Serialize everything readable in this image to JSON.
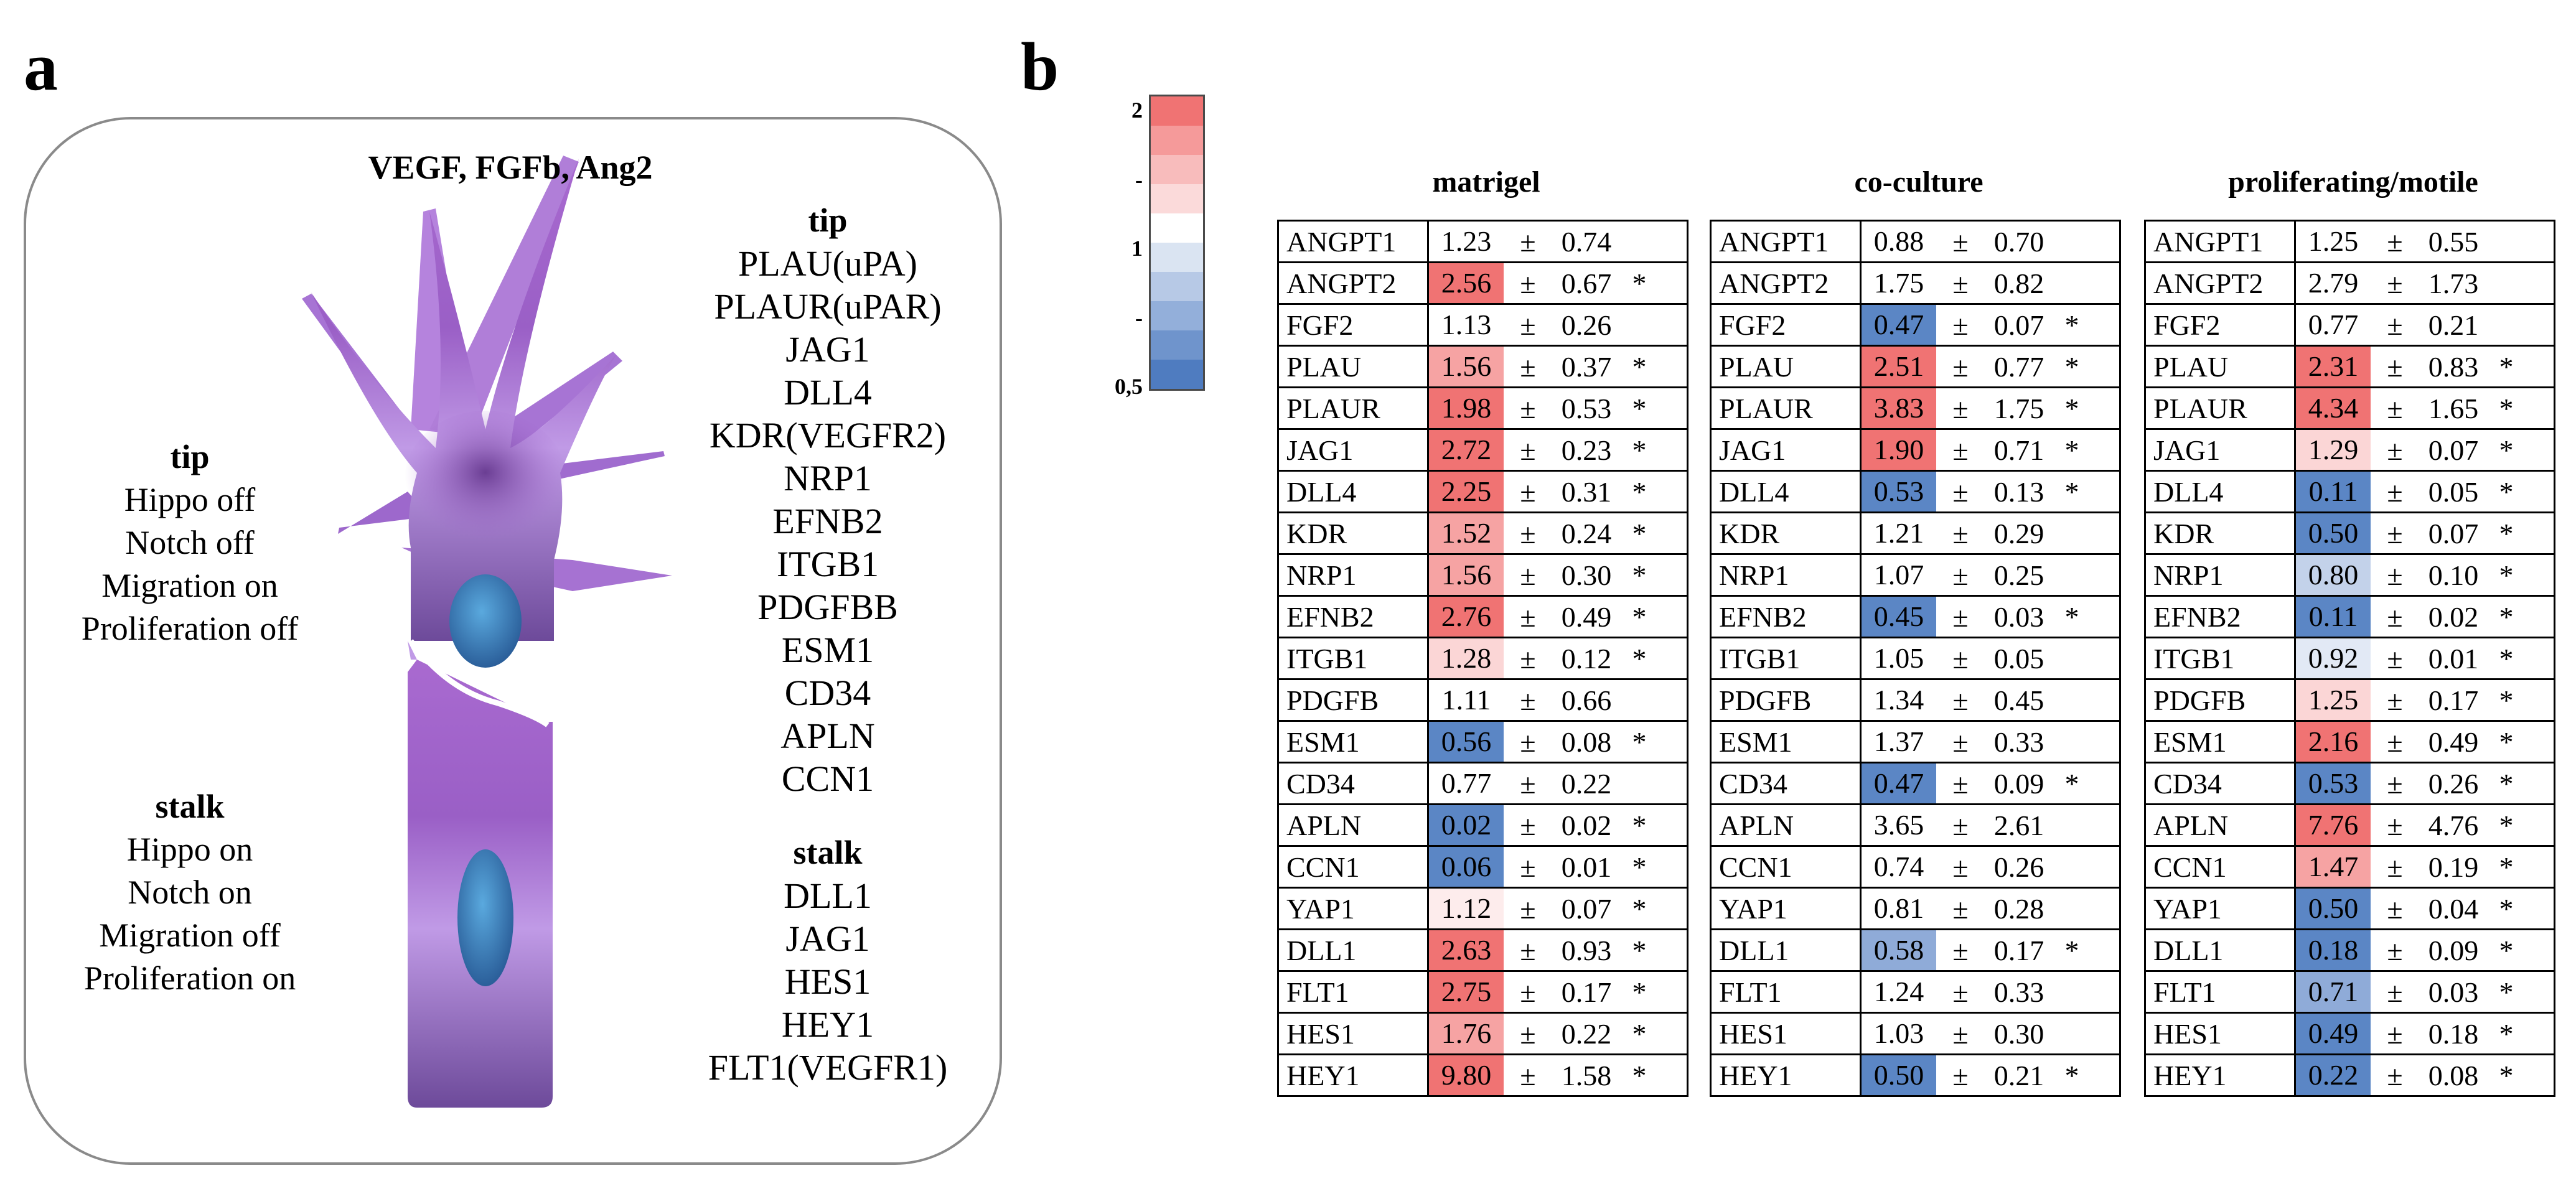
{
  "panels": {
    "a": "a",
    "b": "b"
  },
  "diagram": {
    "growth_factors": "VEGF, FGFb, Ang2",
    "tip_state": {
      "heading": "tip",
      "lines": [
        "Hippo off",
        "Notch off",
        "Migration on",
        "Proliferation off"
      ]
    },
    "stalk_state": {
      "heading": "stalk",
      "lines": [
        "Hippo on",
        "Notch on",
        "Migration off",
        "Proliferation on"
      ]
    },
    "tip_genes": {
      "heading": "tip",
      "items": [
        "PLAU(uPA)",
        "PLAUR(uPAR)",
        "JAG1",
        "DLL4",
        "KDR(VEGFR2)",
        "NRP1",
        "EFNB2",
        "ITGB1",
        "PDGFBB",
        "ESM1",
        "CD34",
        "APLN",
        "CCN1"
      ]
    },
    "stalk_genes": {
      "heading": "stalk",
      "items": [
        "DLL1",
        "JAG1",
        "HES1",
        "HEY1",
        "FLT1(VEGFR1)"
      ]
    }
  },
  "legend": {
    "labels": [
      "2",
      "-",
      "1",
      "-",
      "0,5"
    ],
    "colors": [
      "#f07373",
      "#f59a9a",
      "#f8bcbc",
      "#fbdada",
      "#ffffff",
      "#dae4f2",
      "#b7c9e6",
      "#93afda",
      "#6f94cc",
      "#4f7cc0"
    ]
  },
  "colors": {
    "strong_red": "#f07373",
    "mid_red": "#f6a3a3",
    "light_red": "#fbd6d6",
    "faint_red": "#fdecec",
    "strong_blue": "#5b86c5",
    "mid_blue": "#8fabd8",
    "light_blue": "#c3d2ea",
    "faint_blue": "#e2e9f5"
  },
  "plus_minus": "±",
  "tables": [
    {
      "title": "matrigel",
      "rows": [
        {
          "gene": "ANGPT1",
          "mean": "1.23",
          "sd": "0.74",
          "sig": "",
          "tone": "none"
        },
        {
          "gene": "ANGPT2",
          "mean": "2.56",
          "sd": "0.67",
          "sig": "*",
          "tone": "red3"
        },
        {
          "gene": "FGF2",
          "mean": "1.13",
          "sd": "0.26",
          "sig": "",
          "tone": "none"
        },
        {
          "gene": "PLAU",
          "mean": "1.56",
          "sd": "0.37",
          "sig": "*",
          "tone": "red2"
        },
        {
          "gene": "PLAUR",
          "mean": "1.98",
          "sd": "0.53",
          "sig": "*",
          "tone": "red3"
        },
        {
          "gene": "JAG1",
          "mean": "2.72",
          "sd": "0.23",
          "sig": "*",
          "tone": "red3"
        },
        {
          "gene": "DLL4",
          "mean": "2.25",
          "sd": "0.31",
          "sig": "*",
          "tone": "red3"
        },
        {
          "gene": "KDR",
          "mean": "1.52",
          "sd": "0.24",
          "sig": "*",
          "tone": "red2"
        },
        {
          "gene": "NRP1",
          "mean": "1.56",
          "sd": "0.30",
          "sig": "*",
          "tone": "red2"
        },
        {
          "gene": "EFNB2",
          "mean": "2.76",
          "sd": "0.49",
          "sig": "*",
          "tone": "red3"
        },
        {
          "gene": "ITGB1",
          "mean": "1.28",
          "sd": "0.12",
          "sig": "*",
          "tone": "red1"
        },
        {
          "gene": "PDGFB",
          "mean": "1.11",
          "sd": "0.66",
          "sig": "",
          "tone": "none"
        },
        {
          "gene": "ESM1",
          "mean": "0.56",
          "sd": "0.08",
          "sig": "*",
          "tone": "blue3"
        },
        {
          "gene": "CD34",
          "mean": "0.77",
          "sd": "0.22",
          "sig": "",
          "tone": "none"
        },
        {
          "gene": "APLN",
          "mean": "0.02",
          "sd": "0.02",
          "sig": "*",
          "tone": "blue3"
        },
        {
          "gene": "CCN1",
          "mean": "0.06",
          "sd": "0.01",
          "sig": "*",
          "tone": "blue3"
        },
        {
          "gene": "YAP1",
          "mean": "1.12",
          "sd": "0.07",
          "sig": "*",
          "tone": "red0"
        },
        {
          "gene": "DLL1",
          "mean": "2.63",
          "sd": "0.93",
          "sig": "*",
          "tone": "red3"
        },
        {
          "gene": "FLT1",
          "mean": "2.75",
          "sd": "0.17",
          "sig": "*",
          "tone": "red3"
        },
        {
          "gene": "HES1",
          "mean": "1.76",
          "sd": "0.22",
          "sig": "*",
          "tone": "red2"
        },
        {
          "gene": "HEY1",
          "mean": "9.80",
          "sd": "1.58",
          "sig": "*",
          "tone": "red3"
        }
      ]
    },
    {
      "title": "co-culture",
      "rows": [
        {
          "gene": "ANGPT1",
          "mean": "0.88",
          "sd": "0.70",
          "sig": "",
          "tone": "none"
        },
        {
          "gene": "ANGPT2",
          "mean": "1.75",
          "sd": "0.82",
          "sig": "",
          "tone": "none"
        },
        {
          "gene": "FGF2",
          "mean": "0.47",
          "sd": "0.07",
          "sig": "*",
          "tone": "blue3"
        },
        {
          "gene": "PLAU",
          "mean": "2.51",
          "sd": "0.77",
          "sig": "*",
          "tone": "red3"
        },
        {
          "gene": "PLAUR",
          "mean": "3.83",
          "sd": "1.75",
          "sig": "*",
          "tone": "red3"
        },
        {
          "gene": "JAG1",
          "mean": "1.90",
          "sd": "0.71",
          "sig": "*",
          "tone": "red3"
        },
        {
          "gene": "DLL4",
          "mean": "0.53",
          "sd": "0.13",
          "sig": "*",
          "tone": "blue3"
        },
        {
          "gene": "KDR",
          "mean": "1.21",
          "sd": "0.29",
          "sig": "",
          "tone": "none"
        },
        {
          "gene": "NRP1",
          "mean": "1.07",
          "sd": "0.25",
          "sig": "",
          "tone": "none"
        },
        {
          "gene": "EFNB2",
          "mean": "0.45",
          "sd": "0.03",
          "sig": "*",
          "tone": "blue3"
        },
        {
          "gene": "ITGB1",
          "mean": "1.05",
          "sd": "0.05",
          "sig": "",
          "tone": "none"
        },
        {
          "gene": "PDGFB",
          "mean": "1.34",
          "sd": "0.45",
          "sig": "",
          "tone": "none"
        },
        {
          "gene": "ESM1",
          "mean": "1.37",
          "sd": "0.33",
          "sig": "",
          "tone": "none"
        },
        {
          "gene": "CD34",
          "mean": "0.47",
          "sd": "0.09",
          "sig": "*",
          "tone": "blue3"
        },
        {
          "gene": "APLN",
          "mean": "3.65",
          "sd": "2.61",
          "sig": "",
          "tone": "none"
        },
        {
          "gene": "CCN1",
          "mean": "0.74",
          "sd": "0.26",
          "sig": "",
          "tone": "none"
        },
        {
          "gene": "YAP1",
          "mean": "0.81",
          "sd": "0.28",
          "sig": "",
          "tone": "none"
        },
        {
          "gene": "DLL1",
          "mean": "0.58",
          "sd": "0.17",
          "sig": "*",
          "tone": "blue2"
        },
        {
          "gene": "FLT1",
          "mean": "1.24",
          "sd": "0.33",
          "sig": "",
          "tone": "none"
        },
        {
          "gene": "HES1",
          "mean": "1.03",
          "sd": "0.30",
          "sig": "",
          "tone": "none"
        },
        {
          "gene": "HEY1",
          "mean": "0.50",
          "sd": "0.21",
          "sig": "*",
          "tone": "blue3"
        }
      ]
    },
    {
      "title": "proliferating/motile",
      "rows": [
        {
          "gene": "ANGPT1",
          "mean": "1.25",
          "sd": "0.55",
          "sig": "",
          "tone": "none"
        },
        {
          "gene": "ANGPT2",
          "mean": "2.79",
          "sd": "1.73",
          "sig": "",
          "tone": "none"
        },
        {
          "gene": "FGF2",
          "mean": "0.77",
          "sd": "0.21",
          "sig": "",
          "tone": "none"
        },
        {
          "gene": "PLAU",
          "mean": "2.31",
          "sd": "0.83",
          "sig": "*",
          "tone": "red3"
        },
        {
          "gene": "PLAUR",
          "mean": "4.34",
          "sd": "1.65",
          "sig": "*",
          "tone": "red3"
        },
        {
          "gene": "JAG1",
          "mean": "1.29",
          "sd": "0.07",
          "sig": "*",
          "tone": "red1"
        },
        {
          "gene": "DLL4",
          "mean": "0.11",
          "sd": "0.05",
          "sig": "*",
          "tone": "blue3"
        },
        {
          "gene": "KDR",
          "mean": "0.50",
          "sd": "0.07",
          "sig": "*",
          "tone": "blue3"
        },
        {
          "gene": "NRP1",
          "mean": "0.80",
          "sd": "0.10",
          "sig": "*",
          "tone": "blue1"
        },
        {
          "gene": "EFNB2",
          "mean": "0.11",
          "sd": "0.02",
          "sig": "*",
          "tone": "blue3"
        },
        {
          "gene": "ITGB1",
          "mean": "0.92",
          "sd": "0.01",
          "sig": "*",
          "tone": "blue0"
        },
        {
          "gene": "PDGFB",
          "mean": "1.25",
          "sd": "0.17",
          "sig": "*",
          "tone": "red1"
        },
        {
          "gene": "ESM1",
          "mean": "2.16",
          "sd": "0.49",
          "sig": "*",
          "tone": "red3"
        },
        {
          "gene": "CD34",
          "mean": "0.53",
          "sd": "0.26",
          "sig": "*",
          "tone": "blue3"
        },
        {
          "gene": "APLN",
          "mean": "7.76",
          "sd": "4.76",
          "sig": "*",
          "tone": "red3"
        },
        {
          "gene": "CCN1",
          "mean": "1.47",
          "sd": "0.19",
          "sig": "*",
          "tone": "red2"
        },
        {
          "gene": "YAP1",
          "mean": "0.50",
          "sd": "0.04",
          "sig": "*",
          "tone": "blue3"
        },
        {
          "gene": "DLL1",
          "mean": "0.18",
          "sd": "0.09",
          "sig": "*",
          "tone": "blue3"
        },
        {
          "gene": "FLT1",
          "mean": "0.71",
          "sd": "0.03",
          "sig": "*",
          "tone": "blue2"
        },
        {
          "gene": "HES1",
          "mean": "0.49",
          "sd": "0.18",
          "sig": "*",
          "tone": "blue3"
        },
        {
          "gene": "HEY1",
          "mean": "0.22",
          "sd": "0.08",
          "sig": "*",
          "tone": "blue3"
        }
      ]
    }
  ]
}
